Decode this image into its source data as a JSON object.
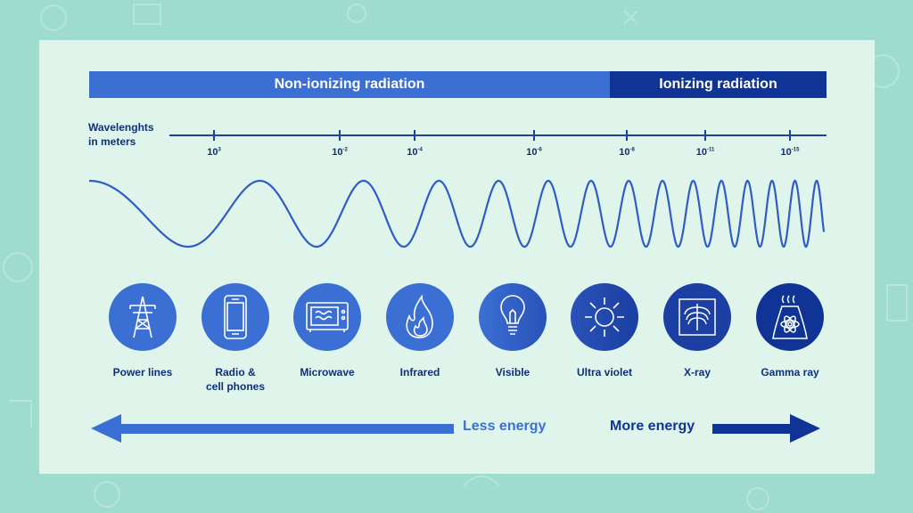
{
  "bands": {
    "non_ionizing": "Non-ionizing radiation",
    "ionizing": "Ionizing radiation"
  },
  "wavelength_label_line1": "Wavelenghts",
  "wavelength_label_line2": "in meters",
  "ticks": [
    {
      "base": "10",
      "exp": "3"
    },
    {
      "base": "10",
      "exp": "-2"
    },
    {
      "base": "10",
      "exp": "-4"
    },
    {
      "base": "10",
      "exp": "-6"
    },
    {
      "base": "10",
      "exp": "-8"
    },
    {
      "base": "10",
      "exp": "-11"
    },
    {
      "base": "10",
      "exp": "-15"
    }
  ],
  "items": [
    {
      "label1": "Power lines",
      "label2": "",
      "icon": "power-tower-icon"
    },
    {
      "label1": "Radio &",
      "label2": "cell phones",
      "icon": "phone-icon"
    },
    {
      "label1": "Microwave",
      "label2": "",
      "icon": "microwave-icon"
    },
    {
      "label1": "Infrared",
      "label2": "",
      "icon": "flame-icon"
    },
    {
      "label1": "Visible",
      "label2": "",
      "icon": "lightbulb-icon"
    },
    {
      "label1": "Ultra violet",
      "label2": "",
      "icon": "sun-icon"
    },
    {
      "label1": "X-ray",
      "label2": "",
      "icon": "xray-ribcage-icon"
    },
    {
      "label1": "Gamma ray",
      "label2": "",
      "icon": "reactor-atom-icon"
    }
  ],
  "energy": {
    "less": "Less energy",
    "more": "More energy"
  },
  "colors": {
    "light_blue": "#3b6fd4",
    "dark_blue": "#0f3495",
    "panel": "#dff5ec",
    "background": "#9fdcd0"
  }
}
